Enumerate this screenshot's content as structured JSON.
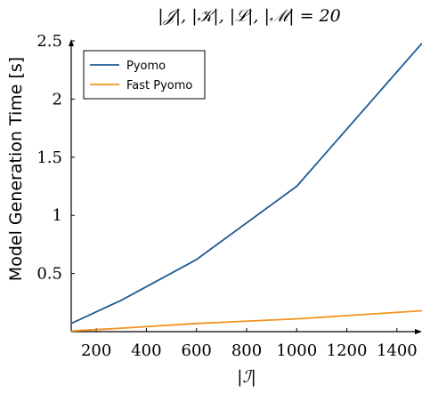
{
  "chart_data": {
    "type": "line",
    "title": "|𝒥|, |𝒦|, |ℒ|, |ℳ| = 20",
    "xlabel": "|ℐ|",
    "ylabel": "Model Generation Time [s]",
    "xlim": [
      100,
      1500
    ],
    "ylim": [
      0,
      2.5
    ],
    "xticks": [
      200,
      400,
      600,
      800,
      1000,
      1200,
      1400
    ],
    "yticks": [
      0.5,
      1,
      1.5,
      2,
      2.5
    ],
    "ytick_labels": [
      "0.5",
      "1",
      "1.5",
      "2",
      "2.5"
    ],
    "grid": false,
    "legend_position": "top-left",
    "series": [
      {
        "name": "Pyomo",
        "color": "#1f5b94",
        "x": [
          100,
          300,
          600,
          1000,
          1500
        ],
        "y": [
          0.07,
          0.27,
          0.62,
          1.25,
          2.48
        ]
      },
      {
        "name": "Fast Pyomo",
        "color": "#f0921e",
        "x": [
          100,
          300,
          600,
          1000,
          1500
        ],
        "y": [
          0.005,
          0.03,
          0.07,
          0.11,
          0.18
        ]
      }
    ]
  }
}
